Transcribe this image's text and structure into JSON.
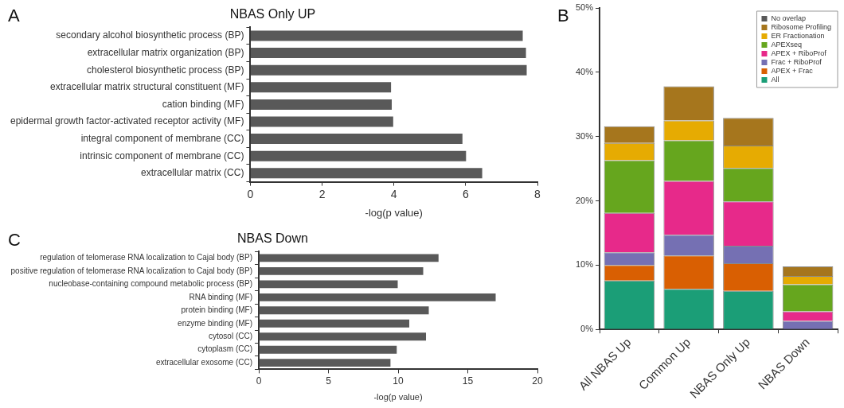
{
  "chart_data": [
    {
      "type": "bar",
      "orientation": "horizontal",
      "title": "NBAS Only UP",
      "xlabel": "-log(p value)",
      "annotations": [
        "A"
      ],
      "categories": [
        "secondary alcohol biosynthetic process (BP)",
        "extracellular matrix organization (BP)",
        "cholesterol biosynthetic process (BP)",
        "extracellular matrix structural constituent (MF)",
        "cation binding (MF)",
        "epidermal growth factor-activated receptor activity (MF)",
        "integral component of membrane (CC)",
        "intrinsic component of membrane (CC)",
        "extracellular matrix (CC)"
      ],
      "values": [
        7.59,
        7.68,
        7.7,
        3.92,
        3.94,
        3.98,
        5.91,
        6.01,
        6.46
      ],
      "color": "#595959",
      "xlim": [
        0,
        8
      ],
      "xticks": [
        0,
        2,
        4,
        6,
        8
      ],
      "grid": false
    },
    {
      "type": "bar",
      "stacked": true,
      "annotations": [
        "B"
      ],
      "categories": [
        "All NBAS Up",
        "Common Up",
        "NBAS Only Up",
        "NBAS Down"
      ],
      "series": [
        {
          "name": "All",
          "color": "#1b9e77",
          "values": [
            7.6,
            6.3,
            6.0,
            0
          ]
        },
        {
          "name": "APEX + Frac",
          "color": "#d95f02",
          "values": [
            2.4,
            5.2,
            4.3,
            0
          ]
        },
        {
          "name": "Frac + RiboProf",
          "color": "#7570b3",
          "values": [
            2.0,
            3.2,
            2.7,
            1.3
          ]
        },
        {
          "name": "APEX + RiboProf",
          "color": "#e7298a",
          "values": [
            6.1,
            8.4,
            6.9,
            1.5
          ]
        },
        {
          "name": "APEXseq",
          "color": "#66a61e",
          "values": [
            8.2,
            6.3,
            5.2,
            4.2
          ]
        },
        {
          "name": "ER Fractionation",
          "color": "#e6ab02",
          "values": [
            2.7,
            3.1,
            3.5,
            1.3
          ]
        },
        {
          "name": "Ribosome Profiling",
          "color": "#a6761d",
          "values": [
            2.6,
            5.3,
            4.3,
            1.5
          ]
        },
        {
          "name": "No overlap",
          "color": "#595959",
          "values": [
            0,
            0,
            0,
            0
          ]
        }
      ],
      "ylim": [
        0,
        50
      ],
      "yticks": [
        {
          "value": 0,
          "label": "0%"
        },
        {
          "value": 10,
          "label": "10%"
        },
        {
          "value": 20,
          "label": "20%"
        },
        {
          "value": 30,
          "label": "30%"
        },
        {
          "value": 40,
          "label": "40%"
        },
        {
          "value": 50,
          "label": "50%"
        }
      ],
      "legend": "top right",
      "grid": false
    },
    {
      "type": "bar",
      "orientation": "horizontal",
      "title": "NBAS Down",
      "xlabel": "-log(p value)",
      "annotations": [
        "C"
      ],
      "categories": [
        "regulation of telomerase RNA localization to Cajal body (BP)",
        "positive regulation of telomerase RNA localization to Cajal body (BP)",
        "nucleobase-containing compound metabolic process (BP)",
        "RNA binding (MF)",
        "protein binding (MF)",
        "enzyme binding (MF)",
        "cytosol (CC)",
        "cytoplasm (CC)",
        "extracellular exosome (CC)"
      ],
      "values": [
        12.9,
        11.8,
        9.97,
        17.0,
        12.2,
        10.8,
        12.0,
        9.9,
        9.45
      ],
      "color": "#595959",
      "xlim": [
        0,
        20
      ],
      "xticks": [
        0,
        5,
        10,
        15,
        20
      ],
      "grid": false
    }
  ]
}
